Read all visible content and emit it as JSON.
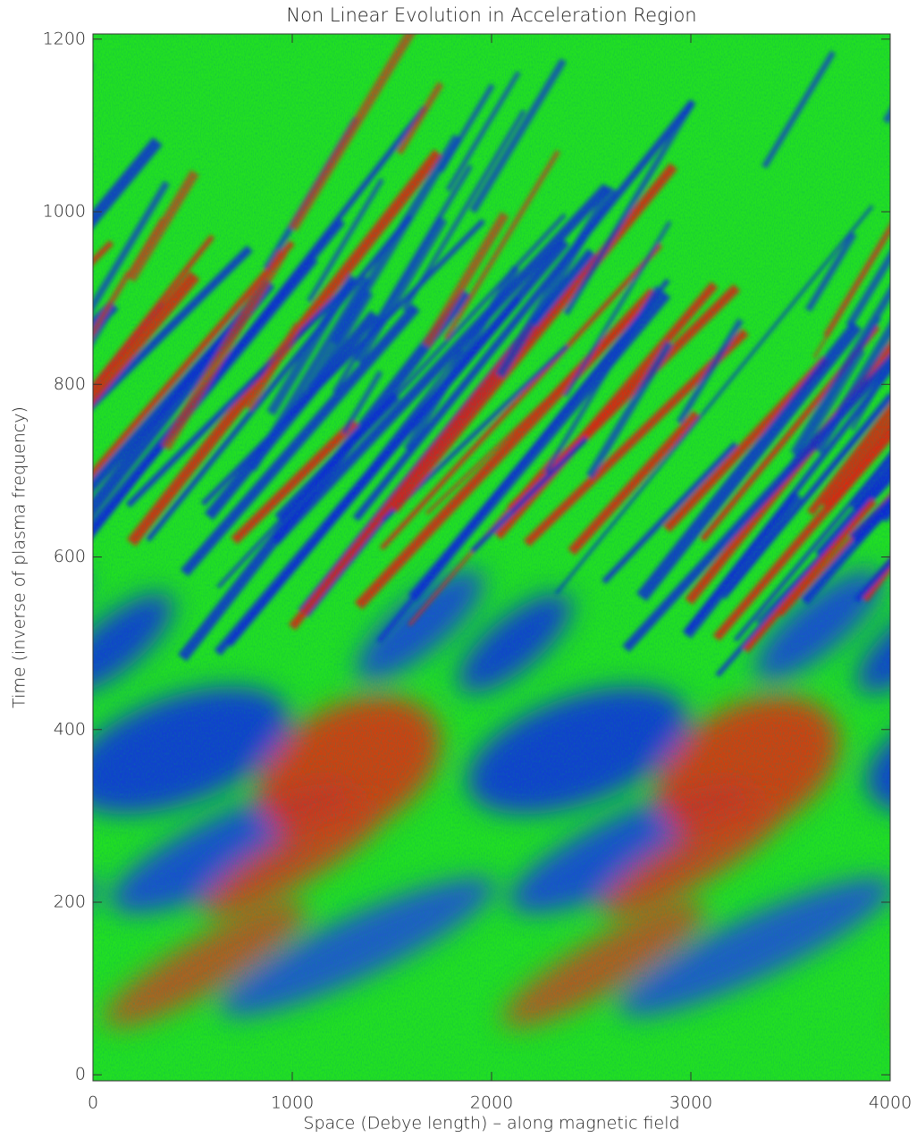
{
  "chart_data": {
    "type": "heatmap",
    "title": "Non Linear Evolution in Acceleration Region",
    "x_label": "Space (Debye length) – along magnetic field",
    "y_label": "Time (inverse of plasma frequency)",
    "xlim": [
      0,
      4000
    ],
    "ylim": [
      -7,
      1206
    ],
    "xticks": [
      0,
      1000,
      2000,
      3000,
      4000
    ],
    "yticks": [
      0,
      200,
      400,
      600,
      800,
      1000,
      1200
    ]
  }
}
